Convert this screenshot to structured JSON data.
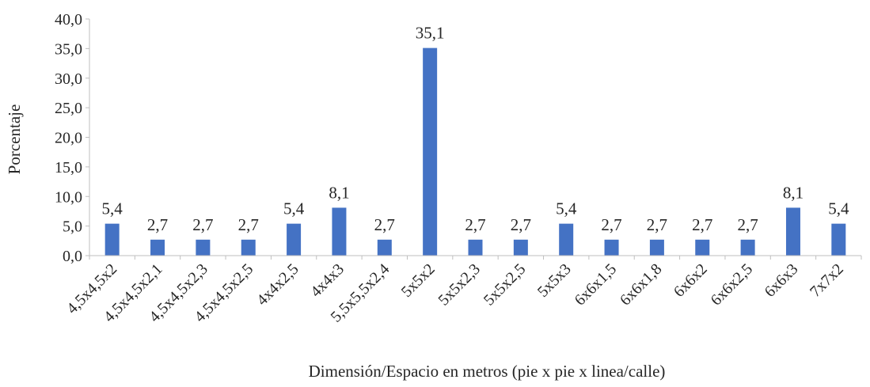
{
  "chart_data": {
    "type": "bar",
    "title": "",
    "xlabel": "Dimensión/Espacio en metros (pie x pie x linea/calle)",
    "ylabel": "Porcentaje",
    "ylim": [
      0,
      40
    ],
    "ytick_step": 5,
    "ytick_labels": [
      "0,0",
      "5,0",
      "10,0",
      "15,0",
      "20,0",
      "25,0",
      "30,0",
      "35,0",
      "40,0"
    ],
    "categories": [
      "4,5x4,5x2",
      "4,5x4,5x2,1",
      "4,5x4,5x2,3",
      "4,5x4,5x2,5",
      "4x4x2,5",
      "4x4x3",
      "5,5x5,5x2,4",
      "5x5x2",
      "5x5x2,3",
      "5x5x2,5",
      "5x5x3",
      "6x6x1,5",
      "6x6x1,8",
      "6x6x2",
      "6x6x2,5",
      "6x6x3",
      "7x7x2"
    ],
    "values": [
      5.4,
      2.7,
      2.7,
      2.7,
      5.4,
      8.1,
      2.7,
      35.1,
      2.7,
      2.7,
      5.4,
      2.7,
      2.7,
      2.7,
      2.7,
      8.1,
      5.4
    ],
    "data_labels": [
      "5,4",
      "2,7",
      "2,7",
      "2,7",
      "5,4",
      "8,1",
      "2,7",
      "35,1",
      "2,7",
      "2,7",
      "5,4",
      "2,7",
      "2,7",
      "2,7",
      "2,7",
      "8,1",
      "5,4"
    ],
    "bar_color": "#4472C4",
    "grid": false,
    "legend": "none"
  }
}
